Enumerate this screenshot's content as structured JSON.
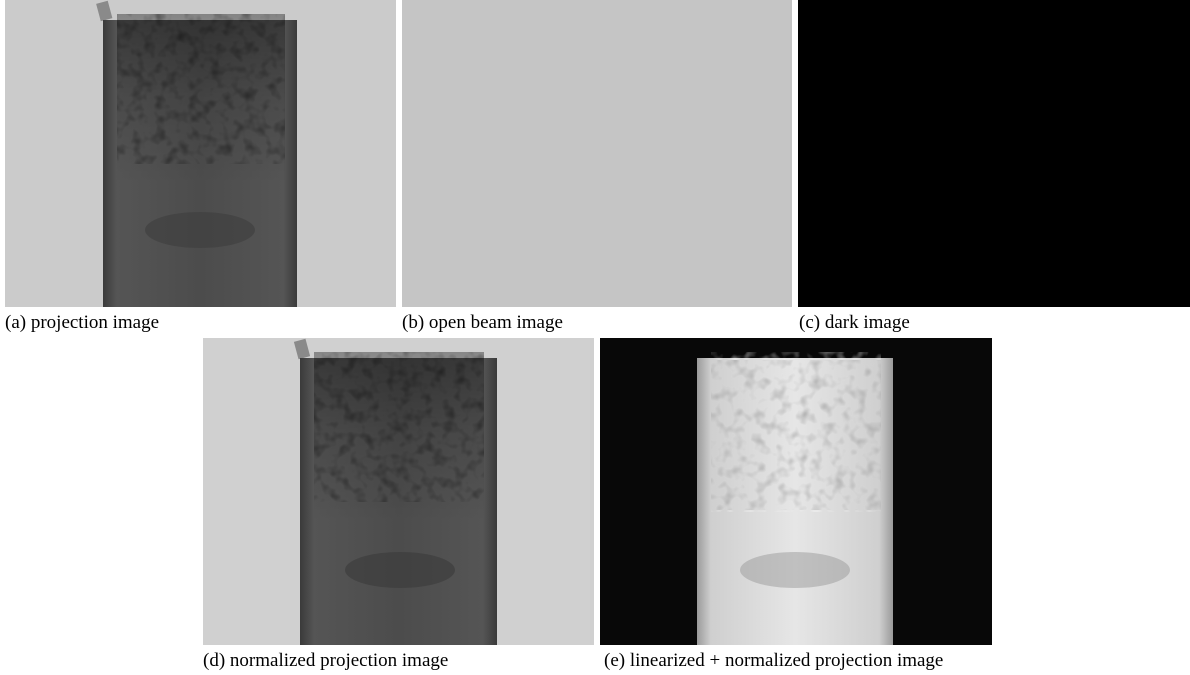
{
  "panels": [
    {
      "caption": "(a) projection image"
    },
    {
      "caption": "(b) open beam image"
    },
    {
      "caption": "(c) dark image"
    },
    {
      "caption": "(d) normalized projection image"
    },
    {
      "caption": "(e) linearized + normalized projection image"
    }
  ]
}
